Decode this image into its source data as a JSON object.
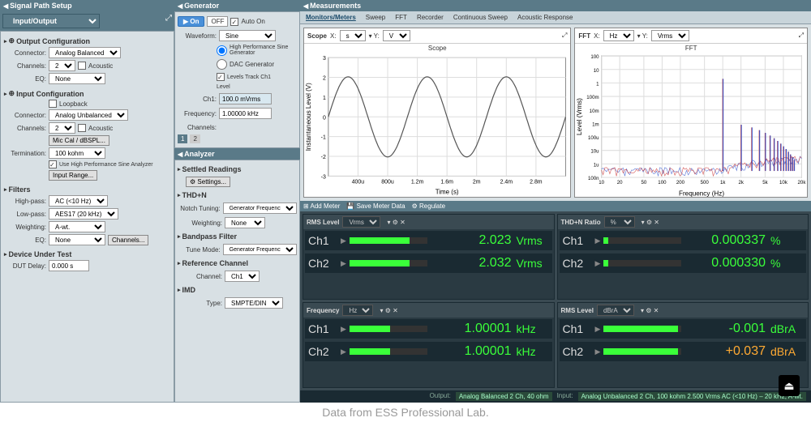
{
  "caption": "Data from ESS Professional Lab.",
  "signalPath": {
    "title": "Signal Path Setup",
    "dropdown": "Input/Output",
    "outputConfig": {
      "title": "Output Configuration",
      "connector": "Analog Balanced",
      "channels": "2",
      "acoustic": "Acoustic",
      "eq": "None"
    },
    "inputConfig": {
      "title": "Input Configuration",
      "loopback": "Loopback",
      "connector": "Analog Unbalanced",
      "channels": "2",
      "acoustic": "Acoustic",
      "micCal": "Mic Cal / dBSPL...",
      "termination": "100 kohm",
      "useHiPerf": "Use High Performance Sine Analyzer",
      "inputRange": "Input Range..."
    },
    "filters": {
      "title": "Filters",
      "highpass": "AC (<10 Hz)",
      "lowpass": "AES17 (20 kHz)",
      "weighting": "A-wt.",
      "eq": "None",
      "channelsBtn": "Channels..."
    },
    "dut": {
      "title": "Device Under Test",
      "delayLabel": "DUT Delay:",
      "delay": "0.000 s"
    }
  },
  "generator": {
    "title": "Generator",
    "on": "On",
    "off": "OFF",
    "autoOn": "Auto On",
    "waveformLabel": "Waveform:",
    "waveform": "Sine",
    "hiPerfSine": "High Performance Sine Generator",
    "dacGen": "DAC Generator",
    "levelsTrack": "Levels Track Ch1",
    "level": "Level",
    "ch1": "Ch1:",
    "ch1Level": "100.0 mVrms",
    "freqLabel": "Frequency:",
    "freq": "1.00000 kHz",
    "channelsLabel": "Channels:"
  },
  "analyzer": {
    "title": "Analyzer",
    "settled": "Settled Readings",
    "settingsBtn": "Settings...",
    "thdn": "THD+N",
    "notchLabel": "Notch Tuning:",
    "notch": "Generator Frequency",
    "weightLabel": "Weighting:",
    "weight": "None",
    "bandpass": "Bandpass Filter",
    "tuneLabel": "Tune Mode:",
    "tune": "Generator Frequency",
    "refCh": "Reference Channel",
    "chLabel": "Channel:",
    "ch": "Ch1",
    "imd": "IMD",
    "typeLabel": "Type:",
    "type": "SMPTE/DIN"
  },
  "measurements": {
    "title": "Measurements",
    "tabs": [
      "Monitors/Meters",
      "Sweep",
      "FFT",
      "Recorder",
      "Continuous Sweep",
      "Acoustic Response"
    ],
    "scope": {
      "title": "Scope",
      "x": "s",
      "y": "V",
      "chartTitle": "Scope",
      "xlabel": "Time (s)",
      "ylabel": "Instantaneous Level (V)",
      "xlim": [
        0,
        0.003
      ],
      "ylim": [
        -3,
        3
      ],
      "xticks": [
        "400u",
        "800u",
        "1.2m",
        "1.6m",
        "2m",
        "2.4m",
        "2.8m"
      ],
      "yticks": [
        "-3",
        "-2",
        "-1",
        "0",
        "1",
        "2",
        "3"
      ],
      "line_color": "#555555",
      "background": "#ffffff",
      "grid_color": "#dddddd",
      "freq_hz": 1000,
      "amplitude": 2.03
    },
    "fft": {
      "title": "FFT",
      "x": "Hz",
      "y": "Vrms",
      "chartTitle": "FFT",
      "xlabel": "Frequency (Hz)",
      "ylabel": "Level (Vrms)",
      "xlim": [
        10,
        20000
      ],
      "ylim": [
        1e-07,
        100
      ],
      "yticks": [
        "100",
        "10",
        "1",
        "100m",
        "10m",
        "1m",
        "100u",
        "10u",
        "1u",
        "100n"
      ],
      "xticks": [
        "10",
        "20",
        "50",
        "100",
        "200",
        "500",
        "1k",
        "2k",
        "5k",
        "10k",
        "20k"
      ],
      "fundamental_hz": 1000,
      "fundamental_level": 2.0,
      "colors": {
        "ch1": "#3355cc",
        "ch2": "#cc3333"
      },
      "noise_floor": 3e-07,
      "background": "#ffffff",
      "grid_color": "#dddddd"
    },
    "toolbar": {
      "addMeter": "Add Meter",
      "saveMeter": "Save Meter Data",
      "regulate": "Regulate"
    },
    "meters": [
      {
        "title": "RMS Level",
        "unit_sel": "Vrms",
        "rows": [
          {
            "ch": "Ch1",
            "val": "2.023",
            "unit": "Vrms",
            "fill": 78
          },
          {
            "ch": "Ch2",
            "val": "2.032",
            "unit": "Vrms",
            "fill": 78
          }
        ]
      },
      {
        "title": "THD+N Ratio",
        "unit_sel": "%",
        "rows": [
          {
            "ch": "Ch1",
            "val": "0.000337",
            "unit": "%",
            "fill": 6
          },
          {
            "ch": "Ch2",
            "val": "0.000330",
            "unit": "%",
            "fill": 6
          }
        ]
      },
      {
        "title": "Frequency",
        "unit_sel": "Hz",
        "rows": [
          {
            "ch": "Ch1",
            "val": "1.00001",
            "unit": "kHz",
            "fill": 52
          },
          {
            "ch": "Ch2",
            "val": "1.00001",
            "unit": "kHz",
            "fill": 52
          }
        ]
      },
      {
        "title": "RMS Level",
        "unit_sel": "dBrA",
        "rows": [
          {
            "ch": "Ch1",
            "val": "-0.001",
            "unit": "dBrA",
            "fill": 96
          },
          {
            "ch": "Ch2",
            "val": "+0.037",
            "unit": "dBrA",
            "fill": 96,
            "color": "#ffaa33"
          }
        ]
      }
    ]
  },
  "statusBar": {
    "outputLabel": "Output:",
    "output": "Analog Balanced 2 Ch, 40 ohm",
    "inputLabel": "Input:",
    "input": "Analog Unbalanced 2 Ch, 100 kohm  2.500 Vrms  AC (<10 Hz) – 20 kHz, A-wt."
  }
}
